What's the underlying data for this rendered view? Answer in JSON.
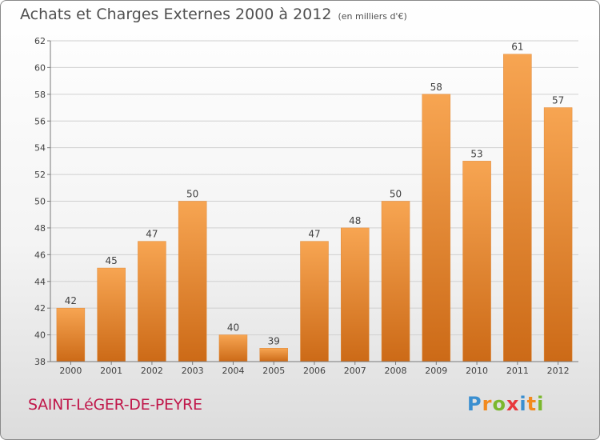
{
  "header": {
    "title": "Achats et Charges Externes 2000 à 2012",
    "unit": "(en milliers d'€)"
  },
  "footer": {
    "commune": "SAINT-LéGER-DE-PEYRE",
    "logo_letters": [
      "P",
      "r",
      "o",
      "x",
      "i",
      "t",
      "i"
    ]
  },
  "colors": {
    "bar_top": "#f7a552",
    "bar_bottom": "#cc6a17",
    "grid": "#d0d0d0",
    "axis": "#7a7a7a",
    "text": "#404040"
  },
  "chart_data": {
    "type": "bar",
    "title": "Achats et Charges Externes 2000 à 2012",
    "ylabel": "",
    "xlabel": "",
    "categories": [
      "2000",
      "2001",
      "2002",
      "2003",
      "2004",
      "2005",
      "2006",
      "2007",
      "2008",
      "2009",
      "2010",
      "2011",
      "2012"
    ],
    "values": [
      42,
      45,
      47,
      50,
      40,
      39,
      47,
      48,
      50,
      58,
      53,
      61,
      57
    ],
    "ylim": [
      38,
      62
    ],
    "yticks": [
      38,
      40,
      42,
      44,
      46,
      48,
      50,
      52,
      54,
      56,
      58,
      60,
      62
    ],
    "grid": true,
    "data_labels": true
  }
}
